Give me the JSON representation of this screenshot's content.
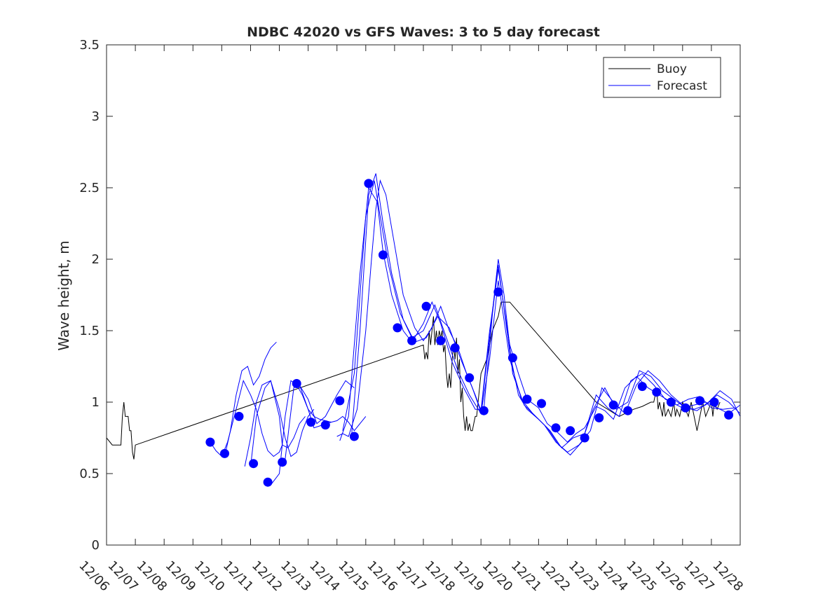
{
  "chart_data": {
    "type": "line",
    "title": "NDBC 42020 vs GFS Waves: 3 to 5 day forecast",
    "ylabel": "Wave height, m",
    "xlabel": "",
    "xlim": [
      0,
      22
    ],
    "ylim": [
      0,
      3.5
    ],
    "x_ticks": [
      "12/06",
      "12/07",
      "12/08",
      "12/09",
      "12/10",
      "12/11",
      "12/12",
      "12/13",
      "12/14",
      "12/15",
      "12/16",
      "12/17",
      "12/18",
      "12/19",
      "12/20",
      "12/21",
      "12/22",
      "12/23",
      "12/24",
      "12/25",
      "12/26",
      "12/27",
      "12/28"
    ],
    "y_ticks": [
      0,
      0.5,
      1,
      1.5,
      2,
      2.5,
      3,
      3.5
    ],
    "legend": {
      "position": "top-right",
      "entries": [
        {
          "label": "Buoy",
          "color": "#000000"
        },
        {
          "label": "Forecast",
          "color": "#0000ff"
        }
      ]
    },
    "series": [
      {
        "name": "Buoy",
        "color": "#000000",
        "x": [
          0,
          0.2,
          0.5,
          0.55,
          0.6,
          0.65,
          0.75,
          0.8,
          0.85,
          0.9,
          0.95,
          1.0,
          11.0,
          11.05,
          11.1,
          11.15,
          11.2,
          11.25,
          11.3,
          11.35,
          11.4,
          11.45,
          11.5,
          11.55,
          11.6,
          11.65,
          11.7,
          11.75,
          11.8,
          11.85,
          11.9,
          11.95,
          12.0,
          12.05,
          12.1,
          12.15,
          12.2,
          12.25,
          12.3,
          12.35,
          12.4,
          12.45,
          12.5,
          12.55,
          12.6,
          12.65,
          12.7,
          12.75,
          12.8,
          12.85,
          13.0,
          13.2,
          13.4,
          13.6,
          13.7,
          13.8,
          13.9,
          14.0,
          17.0,
          17.4,
          17.8,
          18.0,
          18.3,
          18.6,
          18.9,
          19.0,
          19.1,
          19.15,
          19.2,
          19.3,
          19.35,
          19.4,
          19.5,
          19.6,
          19.7,
          19.75,
          19.8,
          19.9,
          20.0,
          20.1,
          20.2,
          20.3,
          20.4,
          20.5,
          20.6,
          20.7,
          20.8,
          20.9,
          21.0,
          21.05,
          21.1,
          21.2,
          21.3
        ],
        "y": [
          0.75,
          0.7,
          0.7,
          0.9,
          1.0,
          0.9,
          0.9,
          0.8,
          0.8,
          0.65,
          0.6,
          0.7,
          1.4,
          1.3,
          1.35,
          1.3,
          1.5,
          1.4,
          1.5,
          1.6,
          1.4,
          1.5,
          1.4,
          1.5,
          1.45,
          1.5,
          1.35,
          1.4,
          1.2,
          1.1,
          1.2,
          1.1,
          1.3,
          1.4,
          1.3,
          1.45,
          1.2,
          1.3,
          1.0,
          1.1,
          0.9,
          0.8,
          0.9,
          0.8,
          0.85,
          0.8,
          0.8,
          0.85,
          0.9,
          0.9,
          1.2,
          1.3,
          1.5,
          1.6,
          1.7,
          1.7,
          1.7,
          1.7,
          1.0,
          0.95,
          0.9,
          0.92,
          0.95,
          0.97,
          1.0,
          1.0,
          1.1,
          0.95,
          1.0,
          0.9,
          1.0,
          0.9,
          0.95,
          0.9,
          1.0,
          0.9,
          0.95,
          0.9,
          1.0,
          0.95,
          0.9,
          1.0,
          0.9,
          0.8,
          0.9,
          1.0,
          0.9,
          0.95,
          1.0,
          0.9,
          1.0,
          0.95,
          1.0
        ]
      },
      {
        "name": "Forecast",
        "color": "#0000ff",
        "runs": [
          {
            "x": [
              3.6,
              3.8,
              4.0,
              4.2,
              4.5,
              4.75,
              5.0,
              5.2,
              5.4,
              5.6,
              5.8,
              6.0,
              6.1
            ],
            "y": [
              0.72,
              0.66,
              0.62,
              0.72,
              0.95,
              1.15,
              1.05,
              0.95,
              0.78,
              0.66,
              0.62,
              0.65,
              0.7
            ]
          },
          {
            "x": [
              4.1,
              4.3,
              4.5,
              4.7,
              4.9,
              5.1,
              5.3,
              5.5,
              5.7,
              5.9
            ],
            "y": [
              0.62,
              0.8,
              1.05,
              1.22,
              1.25,
              1.12,
              1.18,
              1.3,
              1.38,
              1.42
            ]
          },
          {
            "x": [
              4.8,
              5.0,
              5.2,
              5.4,
              5.7,
              6.0,
              6.1,
              6.3,
              6.5,
              6.7,
              6.9
            ],
            "y": [
              0.55,
              0.75,
              1.0,
              1.12,
              1.15,
              0.9,
              0.7,
              0.68,
              0.75,
              0.85,
              0.9
            ]
          },
          {
            "x": [
              5.0,
              5.2,
              5.5,
              5.7,
              6.0,
              6.2,
              6.4,
              6.6,
              6.8,
              7.0,
              7.2
            ],
            "y": [
              0.55,
              0.9,
              1.1,
              1.15,
              0.95,
              0.75,
              0.62,
              0.65,
              0.8,
              0.9,
              0.95
            ]
          },
          {
            "x": [
              5.5,
              5.7,
              6.0,
              6.2,
              6.4,
              6.6,
              6.8,
              7.0,
              7.2,
              7.4,
              7.6,
              7.8
            ],
            "y": [
              0.42,
              0.42,
              0.5,
              0.9,
              1.15,
              1.12,
              1.05,
              0.95,
              0.9,
              0.88,
              0.87,
              0.86
            ]
          },
          {
            "x": [
              6.0,
              6.2,
              6.5,
              6.7,
              7.0,
              7.2,
              7.5,
              7.8,
              8.0,
              8.2,
              8.4,
              8.6,
              9.0
            ],
            "y": [
              0.56,
              0.6,
              1.1,
              1.12,
              0.95,
              0.82,
              0.84,
              0.86,
              0.87,
              0.9,
              0.86,
              0.8,
              0.9
            ]
          },
          {
            "x": [
              6.6,
              7.0,
              7.3,
              7.6,
              8.0,
              8.3,
              8.6
            ],
            "y": [
              1.15,
              1.02,
              0.85,
              0.9,
              1.05,
              1.15,
              1.1
            ]
          },
          {
            "x": [
              8.0,
              8.2,
              8.4,
              8.7,
              9.0,
              9.2,
              9.35,
              9.5,
              9.7,
              10.0,
              10.3,
              10.7,
              11.0,
              11.3,
              11.6,
              11.9,
              12.2,
              12.5,
              12.8,
              13.0,
              13.3,
              13.6,
              14.0,
              14.3,
              14.6,
              15.0,
              15.3,
              15.6,
              16.0,
              16.3,
              16.6,
              17.0,
              17.3,
              17.6,
              18.0,
              18.4,
              18.8,
              19.2,
              19.6,
              20.0,
              20.4,
              20.8,
              21.2,
              21.6,
              22.0
            ],
            "y": [
              0.76,
              0.78,
              0.76,
              0.95,
              1.5,
              2.0,
              2.35,
              2.55,
              2.45,
              2.1,
              1.75,
              1.52,
              1.43,
              1.52,
              1.67,
              1.5,
              1.38,
              1.2,
              1.05,
              0.94,
              1.5,
              1.93,
              1.4,
              1.2,
              1.02,
              0.96,
              0.85,
              0.8,
              0.72,
              0.78,
              0.82,
              0.97,
              0.94,
              0.88,
              1.1,
              1.18,
              1.1,
              1.05,
              1.0,
              0.96,
              0.98,
              1.0,
              0.96,
              0.92,
              0.98
            ]
          },
          {
            "x": [
              8.1,
              8.4,
              8.8,
              9.1,
              9.4,
              9.6,
              9.9,
              10.3,
              10.6,
              11.0,
              11.3,
              11.6,
              12.0,
              12.4,
              12.8,
              13.1,
              13.4,
              13.6,
              14.0,
              14.3,
              14.6,
              15.0,
              15.4,
              15.8,
              16.2,
              16.6,
              17.0,
              17.4,
              17.8,
              18.2,
              18.6,
              19.0,
              19.4,
              19.8,
              20.2,
              20.6,
              21.0,
              21.4,
              21.8
            ],
            "y": [
              0.73,
              0.9,
              1.9,
              2.5,
              2.4,
              2.05,
              1.75,
              1.5,
              1.42,
              1.55,
              1.7,
              1.55,
              1.28,
              1.1,
              0.95,
              0.95,
              1.62,
              1.96,
              1.35,
              1.05,
              0.95,
              0.88,
              0.8,
              0.68,
              0.75,
              0.78,
              1.05,
              0.96,
              0.9,
              1.15,
              1.2,
              1.12,
              1.02,
              0.98,
              1.02,
              1.04,
              0.96,
              0.95,
              0.96
            ]
          },
          {
            "x": [
              8.2,
              8.6,
              9.0,
              9.3,
              9.5,
              9.8,
              10.2,
              10.6,
              11.0,
              11.4,
              11.8,
              12.2,
              12.6,
              13.0,
              13.3,
              13.6,
              14.0,
              14.4,
              14.8,
              15.2,
              15.6,
              16.0,
              16.4,
              16.8,
              17.2,
              17.6,
              18.0,
              18.4,
              18.8,
              19.2,
              19.6,
              20.0,
              20.4,
              20.8,
              21.2,
              21.6,
              22.0
            ],
            "y": [
              0.8,
              1.2,
              2.3,
              2.55,
              2.3,
              1.95,
              1.62,
              1.45,
              1.5,
              1.68,
              1.45,
              1.22,
              1.05,
              0.92,
              1.3,
              1.85,
              1.3,
              1.02,
              0.92,
              0.84,
              0.72,
              0.65,
              0.7,
              0.8,
              1.1,
              1.0,
              0.92,
              1.12,
              1.22,
              1.15,
              1.05,
              0.98,
              0.95,
              0.98,
              1.05,
              1.0,
              0.92
            ]
          },
          {
            "x": [
              8.5,
              8.8,
              9.1,
              9.35,
              9.6,
              9.9,
              10.3,
              10.7,
              11.1,
              11.5,
              11.9,
              12.3,
              12.7,
              13.0,
              13.3,
              13.6,
              13.8,
              14.1,
              14.5,
              14.9,
              15.3,
              15.7,
              16.1,
              16.5,
              16.9,
              17.3,
              17.7,
              18.1,
              18.5,
              18.9,
              19.3,
              19.7,
              20.1,
              20.5,
              20.9,
              21.3,
              21.7,
              22.0
            ],
            "y": [
              0.75,
              1.5,
              2.45,
              2.6,
              2.25,
              1.9,
              1.58,
              1.42,
              1.45,
              1.6,
              1.52,
              1.3,
              1.1,
              0.93,
              1.45,
              2.0,
              1.75,
              1.2,
              0.98,
              0.9,
              0.82,
              0.7,
              0.63,
              0.72,
              0.95,
              1.1,
              0.95,
              1.0,
              1.22,
              1.18,
              1.08,
              1.02,
              0.96,
              0.94,
              1.0,
              1.08,
              1.02,
              0.9
            ]
          }
        ]
      },
      {
        "name": "Forecast markers",
        "color": "#0000ff",
        "x": [
          3.6,
          4.1,
          4.6,
          5.1,
          5.6,
          6.1,
          6.6,
          7.1,
          7.6,
          8.1,
          8.6,
          9.1,
          9.6,
          10.1,
          10.6,
          11.1,
          11.6,
          12.1,
          12.6,
          13.1,
          13.6,
          14.1,
          14.6,
          15.1,
          15.6,
          16.1,
          16.6,
          17.1,
          17.6,
          18.1,
          18.6,
          19.1,
          19.6,
          20.1,
          20.6,
          21.1
        ],
        "y": [
          0.72,
          0.64,
          0.9,
          0.57,
          0.44,
          0.58,
          1.13,
          0.86,
          0.84,
          1.01,
          0.76,
          2.53,
          2.03,
          1.52,
          1.43,
          1.67,
          1.43,
          1.38,
          1.17,
          0.94,
          1.77,
          1.31,
          1.02,
          0.99,
          0.82,
          0.8,
          0.75,
          0.89,
          0.98,
          0.94,
          1.11,
          1.07,
          1.0,
          0.96,
          1.01,
          1.0
        ]
      },
      {
        "name": "Forecast markers (tail)",
        "color": "#0000ff",
        "x": [
          21.6
        ],
        "y": [
          0.91
        ]
      }
    ]
  }
}
